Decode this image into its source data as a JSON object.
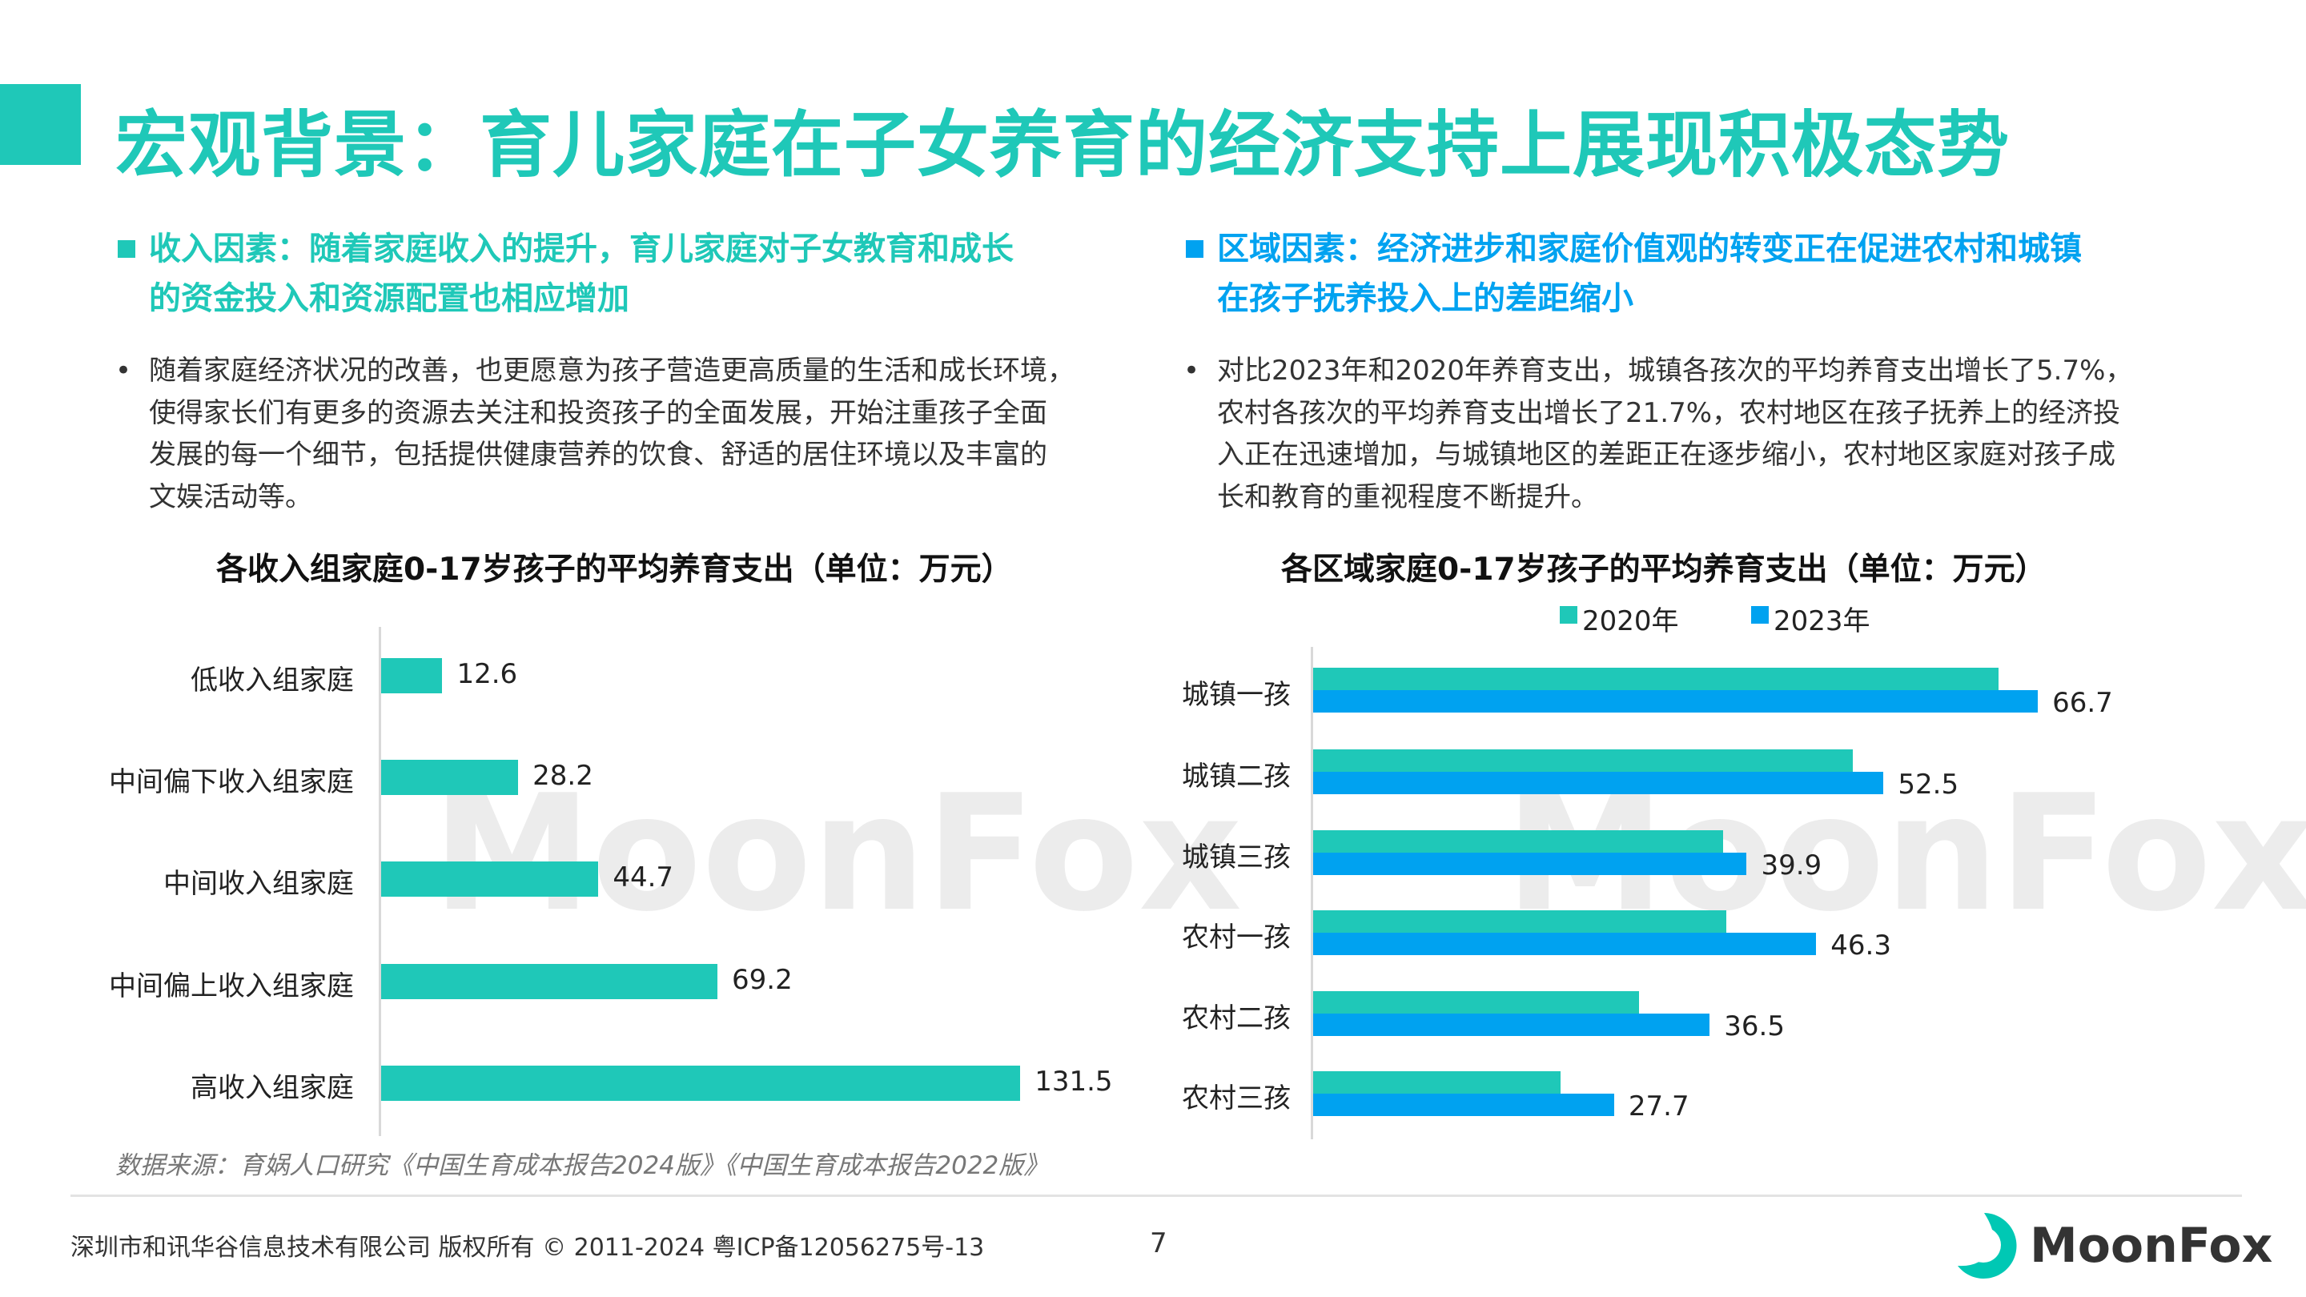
{
  "title": "宏观背景：育儿家庭在子女养育的经济支持上展现积极态势",
  "left": {
    "heading": "收入因素：随着家庭收入的提升，育儿家庭对子女教育和成长的资金投入和资源配置也相应增加",
    "heading_lines": [
      "收入因素：随着家庭收入的提升，育儿家庭对子女教育和成长",
      "的资金投入和资源配置也相应增加"
    ],
    "body_lines": [
      "随着家庭经济状况的改善，也更愿意为孩子营造更高质量的生活和成长环境，",
      "使得家长们有更多的资源去关注和投资孩子的全面发展，开始注重孩子全面",
      "发展的每一个细节，包括提供健康营养的饮食、舒适的居住环境以及丰富的",
      "文娱活动等。"
    ]
  },
  "right": {
    "heading_lines": [
      "区域因素：经济进步和家庭价值观的转变正在促进农村和城镇",
      "在孩子抚养投入上的差距缩小"
    ],
    "body_lines": [
      "对比2023年和2020年养育支出，城镇各孩次的平均养育支出增长了5.7%，",
      "农村各孩次的平均养育支出增长了21.7%，农村地区在孩子抚养上的经济投",
      "入正在迅速增加，与城镇地区的差距正在逐步缩小，农村地区家庭对孩子成",
      "长和教育的重视程度不断提升。"
    ]
  },
  "bullet": "•",
  "watermark": "MoonFox",
  "chart_data": [
    {
      "type": "bar",
      "orientation": "horizontal",
      "title": "各收入组家庭0-17岁孩子的平均养育支出（单位：万元）",
      "categories": [
        "低收入组家庭",
        "中间偏下收入组家庭",
        "中间收入组家庭",
        "中间偏上收入组家庭",
        "高收入组家庭"
      ],
      "values": [
        12.6,
        28.2,
        44.7,
        69.2,
        131.5
      ],
      "labels": [
        "12.6",
        "28.2",
        "44.7",
        "69.2",
        "131.5"
      ],
      "color": "#1fc8b8",
      "xlim": [
        0,
        140
      ]
    },
    {
      "type": "bar",
      "orientation": "horizontal",
      "title": "各区域家庭0-17岁孩子的平均养育支出（单位：万元）",
      "categories": [
        "城镇一孩",
        "城镇二孩",
        "城镇三孩",
        "农村一孩",
        "农村二孩",
        "农村三孩"
      ],
      "series": [
        {
          "name": "2020年",
          "color": "#1fc8b8",
          "values": [
            63.1,
            49.7,
            37.7,
            38.0,
            30.0,
            22.8
          ]
        },
        {
          "name": "2023年",
          "color": "#00a2f0",
          "values": [
            66.7,
            52.5,
            39.9,
            46.3,
            36.5,
            27.7
          ],
          "labels": [
            "66.7",
            "52.5",
            "39.9",
            "46.3",
            "36.5",
            "27.7"
          ]
        }
      ],
      "legend": "top",
      "xlim": [
        0,
        75
      ]
    }
  ],
  "source": "数据来源：育娲人口研究《中国生育成本报告2024版》《中国生育成本报告2022版》",
  "footer": "深圳市和讯华谷信息技术有限公司 版权所有 © 2011-2024 粤ICP备12056275号-13",
  "page_number": "7",
  "logo_text": "MoonFox",
  "colors": {
    "teal": "#1fc8b8",
    "blue": "#00a2f0"
  }
}
